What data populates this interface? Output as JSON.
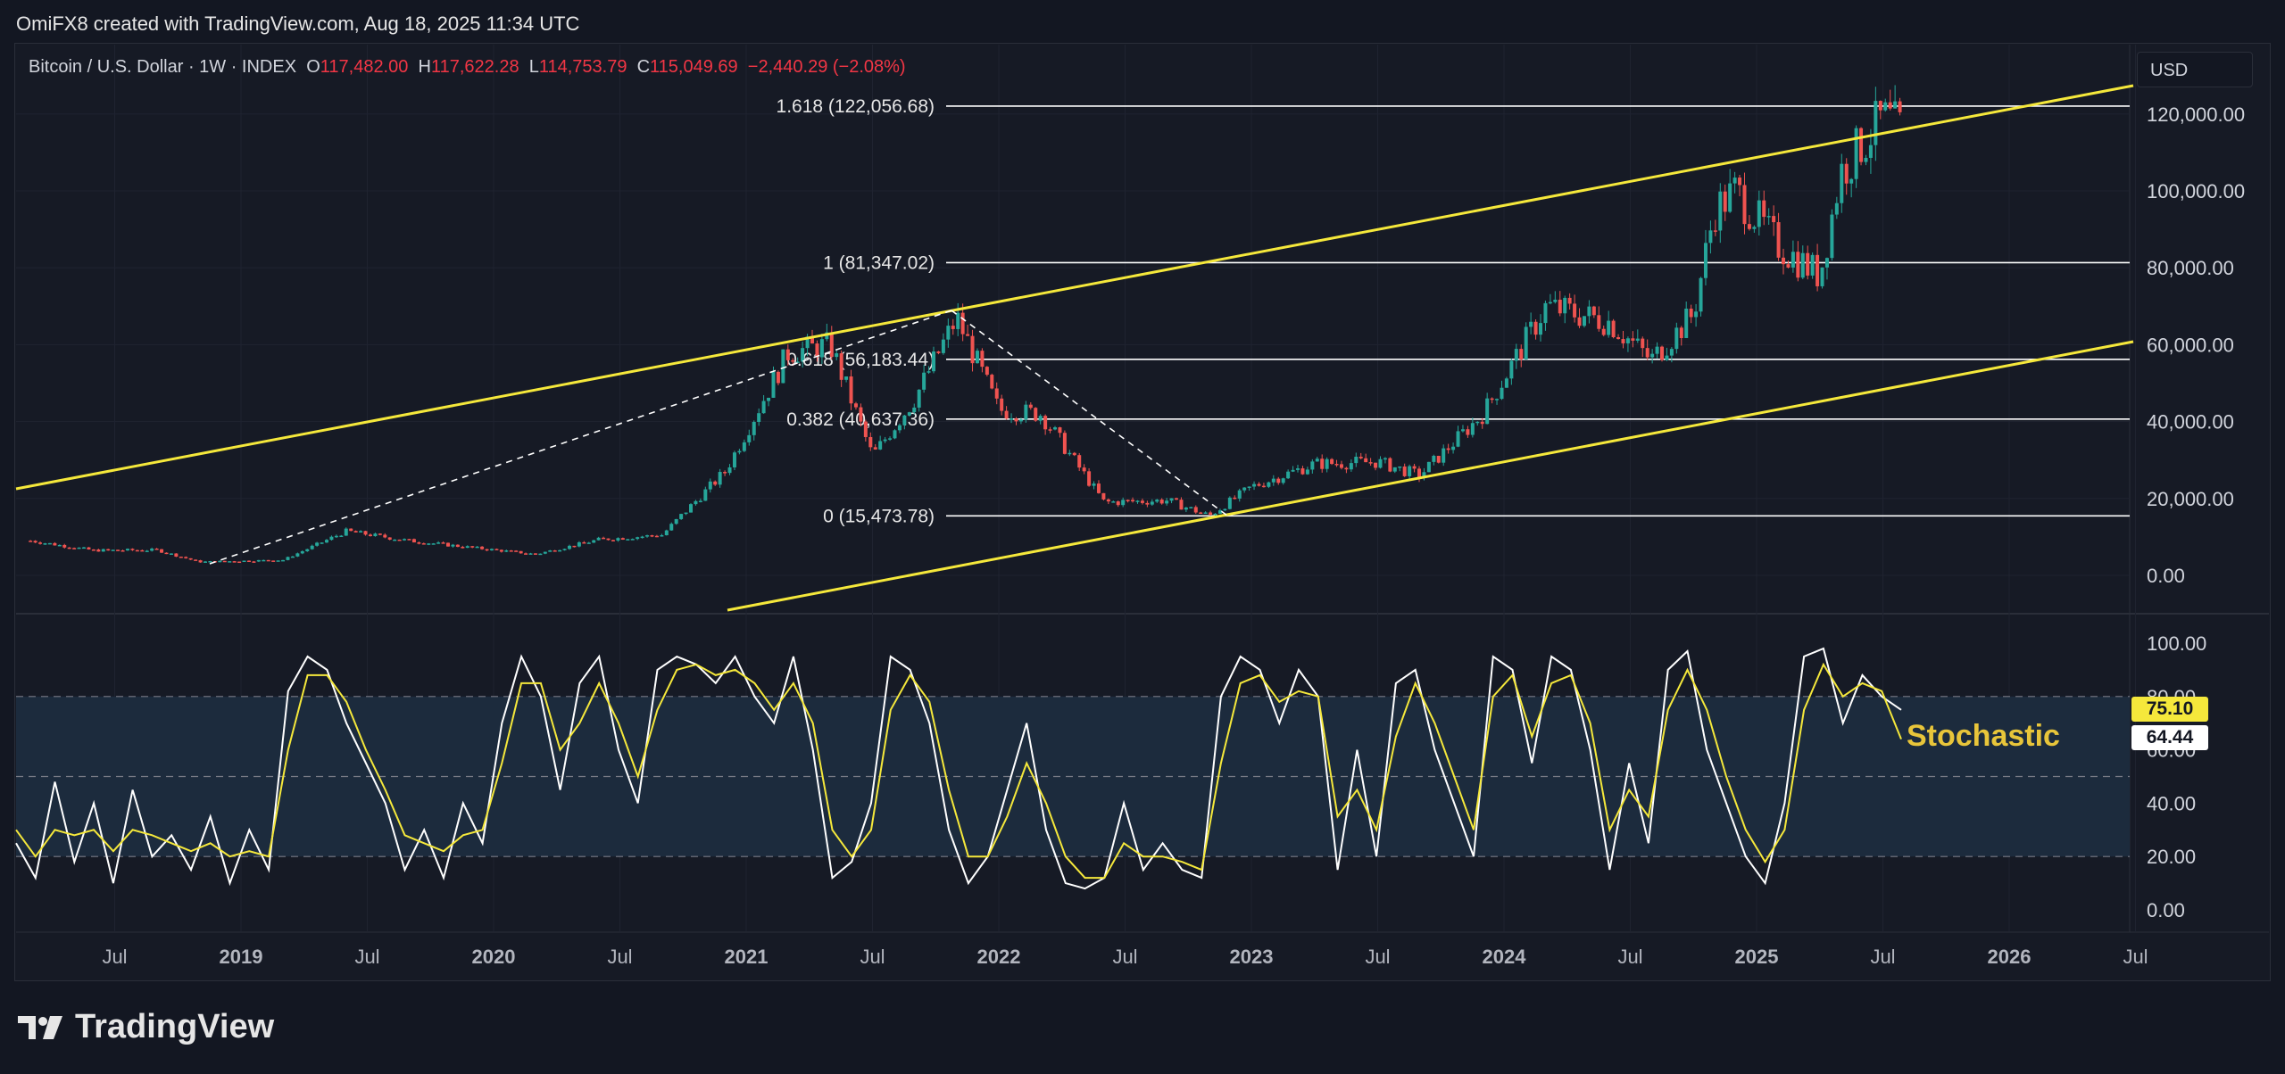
{
  "credit": "OmiFX8 created with TradingView.com, Aug 18, 2025 11:34 UTC",
  "legend": {
    "symbol": "Bitcoin / U.S. Dollar · 1W · INDEX",
    "open_label": "O",
    "open": "117,482.00",
    "high_label": "H",
    "high": "117,622.28",
    "low_label": "L",
    "low": "114,753.79",
    "close_label": "C",
    "close": "115,049.69",
    "change": "−2,440.29 (−2.08%)"
  },
  "currency": "USD",
  "indicator_label": "Stochastic",
  "badges": {
    "k": "75.10",
    "d": "64.44"
  },
  "brand": "TradingView",
  "colors": {
    "background": "#161a25",
    "up": "#26a69a",
    "down": "#ef5350",
    "channel": "#f5e83b",
    "fib": "#ffffff",
    "stoch_k": "#ffffff",
    "stoch_d": "#f5e83b",
    "stoch_band": "#1c2b3d"
  },
  "chart_data": [
    {
      "type": "candlestick",
      "timeframe": "1W",
      "x_ticks": [
        "Jul",
        "2019",
        "Jul",
        "2020",
        "Jul",
        "2021",
        "Jul",
        "2022",
        "Jul",
        "2023",
        "Jul",
        "2024",
        "Jul",
        "2025",
        "Jul",
        "2026",
        "Jul"
      ],
      "y_ticks": [
        "0.00",
        "20,000.00",
        "40,000.00",
        "60,000.00",
        "80,000.00",
        "100,000.00",
        "120,000.00"
      ],
      "ylim": [
        -10000,
        130000
      ],
      "price_path": [
        {
          "date": "2018-03",
          "price": 9000
        },
        {
          "date": "2018-06",
          "price": 6500
        },
        {
          "date": "2018-09",
          "price": 6600
        },
        {
          "date": "2018-11",
          "price": 3500
        },
        {
          "date": "2019-03",
          "price": 4000
        },
        {
          "date": "2019-06",
          "price": 11500
        },
        {
          "date": "2019-09",
          "price": 9000
        },
        {
          "date": "2019-12",
          "price": 7200
        },
        {
          "date": "2020-03",
          "price": 5500
        },
        {
          "date": "2020-06",
          "price": 9300
        },
        {
          "date": "2020-09",
          "price": 10500
        },
        {
          "date": "2020-12",
          "price": 27000
        },
        {
          "date": "2021-03",
          "price": 58000
        },
        {
          "date": "2021-05",
          "price": 60000
        },
        {
          "date": "2021-07",
          "price": 31000
        },
        {
          "date": "2021-09",
          "price": 46000
        },
        {
          "date": "2021-11",
          "price": 67000
        },
        {
          "date": "2022-01",
          "price": 43000
        },
        {
          "date": "2022-03",
          "price": 42000
        },
        {
          "date": "2022-06",
          "price": 19000
        },
        {
          "date": "2022-09",
          "price": 19500
        },
        {
          "date": "2022-11",
          "price": 15500
        },
        {
          "date": "2023-01",
          "price": 23000
        },
        {
          "date": "2023-04",
          "price": 29000
        },
        {
          "date": "2023-07",
          "price": 29500
        },
        {
          "date": "2023-09",
          "price": 26000
        },
        {
          "date": "2023-12",
          "price": 42000
        },
        {
          "date": "2024-03",
          "price": 70000
        },
        {
          "date": "2024-06",
          "price": 66000
        },
        {
          "date": "2024-08",
          "price": 56000
        },
        {
          "date": "2024-10",
          "price": 68000
        },
        {
          "date": "2024-11",
          "price": 95000
        },
        {
          "date": "2024-12",
          "price": 100000
        },
        {
          "date": "2025-02",
          "price": 86000
        },
        {
          "date": "2025-04",
          "price": 78000
        },
        {
          "date": "2025-05",
          "price": 105000
        },
        {
          "date": "2025-07",
          "price": 119000
        },
        {
          "date": "2025-08",
          "price": 115049
        }
      ],
      "fib_levels": [
        {
          "label": "1.618 (122,056.68)",
          "value": 122056.68
        },
        {
          "label": "1 (81,347.02)",
          "value": 81347.02
        },
        {
          "label": "0.618 (56,183.44)",
          "value": 56183.44
        },
        {
          "label": "0.382 (40,637.36)",
          "value": 40637.36
        },
        {
          "label": "0 (15,473.78)",
          "value": 15473.78
        }
      ]
    },
    {
      "type": "line",
      "indicator": "Stochastic",
      "y_ticks": [
        "0.00",
        "20.00",
        "40.00",
        "60.00",
        "80.00",
        "100.00"
      ],
      "ylim": [
        -5,
        105
      ],
      "bands": [
        20,
        50,
        80
      ],
      "series": [
        {
          "name": "%K",
          "values": [
            25,
            12,
            48,
            18,
            40,
            10,
            45,
            20,
            28,
            15,
            35,
            10,
            30,
            15,
            82,
            95,
            90,
            70,
            55,
            40,
            15,
            30,
            12,
            40,
            25,
            70,
            95,
            80,
            45,
            85,
            95,
            60,
            40,
            90,
            95,
            92,
            85,
            95,
            80,
            70,
            95,
            60,
            12,
            18,
            40,
            95,
            90,
            70,
            30,
            10,
            20,
            45,
            70,
            30,
            10,
            8,
            12,
            40,
            15,
            25,
            15,
            12,
            80,
            95,
            90,
            70,
            90,
            80,
            15,
            60,
            20,
            85,
            90,
            60,
            40,
            20,
            95,
            90,
            55,
            95,
            90,
            60,
            15,
            55,
            25,
            90,
            97,
            60,
            40,
            20,
            10,
            40,
            95,
            98,
            70,
            88,
            80,
            75
          ]
        },
        {
          "name": "%D",
          "values": [
            30,
            20,
            30,
            28,
            30,
            22,
            30,
            28,
            25,
            22,
            25,
            20,
            22,
            20,
            60,
            88,
            88,
            78,
            60,
            45,
            28,
            25,
            22,
            28,
            30,
            55,
            85,
            85,
            60,
            70,
            85,
            70,
            50,
            75,
            90,
            92,
            88,
            90,
            85,
            75,
            85,
            70,
            30,
            20,
            30,
            75,
            88,
            78,
            45,
            20,
            20,
            35,
            55,
            40,
            20,
            12,
            12,
            25,
            20,
            20,
            18,
            15,
            55,
            85,
            88,
            78,
            82,
            80,
            35,
            45,
            30,
            65,
            85,
            70,
            50,
            30,
            80,
            88,
            65,
            85,
            88,
            70,
            30,
            45,
            35,
            75,
            90,
            75,
            50,
            30,
            18,
            30,
            75,
            92,
            80,
            85,
            82,
            64
          ]
        }
      ]
    }
  ]
}
